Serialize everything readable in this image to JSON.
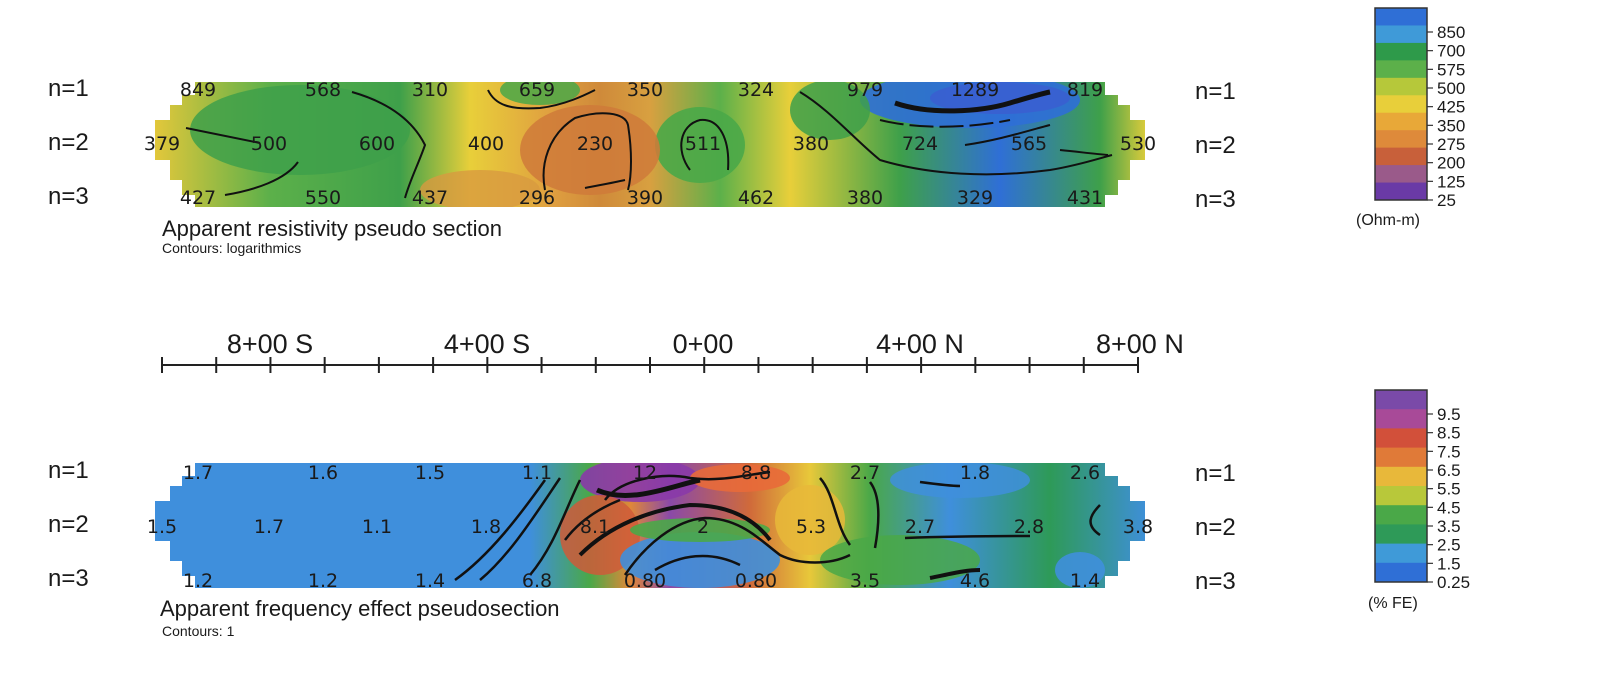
{
  "chart_data": [
    {
      "type": "heatmap",
      "title": "Apparent resistivity pseudo section",
      "subtitle": "Contours: logarithmics",
      "rows": [
        "n=1",
        "n=2",
        "n=3"
      ],
      "values": [
        [
          "849",
          "568",
          "310",
          "659",
          "350",
          "324",
          "979",
          "1289",
          "819"
        ],
        [
          "379",
          "500",
          "600",
          "400",
          "230",
          "511",
          "380",
          "724",
          "565",
          "530"
        ],
        [
          "427",
          "550",
          "437",
          "296",
          "390",
          "462",
          "380",
          "329",
          "431"
        ]
      ],
      "colorbar": {
        "ticks": [
          "850",
          "700",
          "575",
          "500",
          "425",
          "350",
          "275",
          "200",
          "125",
          "25"
        ],
        "unit": "(Ohm-m)",
        "colors": [
          "#2f6fd6",
          "#3f9ad8",
          "#2e9a4a",
          "#5cb04a",
          "#b6c83a",
          "#e8cf3a",
          "#e8a838",
          "#de8a3a",
          "#c8603a",
          "#9a5a8a",
          "#6a3aa6"
        ]
      }
    },
    {
      "type": "heatmap",
      "title": "Apparent frequency effect pseudosection",
      "subtitle": "Contours: 1",
      "rows": [
        "n=1",
        "n=2",
        "n=3"
      ],
      "values": [
        [
          "1.7",
          "1.6",
          "1.5",
          "1.1",
          "12",
          "8.8",
          "2.7",
          "1.8",
          "2.6"
        ],
        [
          "1.5",
          "1.7",
          "1.1",
          "1.8",
          "8.1",
          "2",
          "5.3",
          "2.7",
          "2.8",
          "3.8"
        ],
        [
          "1.2",
          "1.2",
          "1.4",
          "6.8",
          "0.80",
          "0.80",
          "3.5",
          "4.6",
          "1.4"
        ]
      ],
      "colorbar": {
        "ticks": [
          "9.5",
          "8.5",
          "7.5",
          "6.5",
          "5.5",
          "4.5",
          "3.5",
          "2.5",
          "1.5",
          "0.25"
        ],
        "unit": "(% FE)",
        "colors": [
          "#7a4aa8",
          "#a84a98",
          "#d2503a",
          "#e07a38",
          "#e8b83a",
          "#b8c83a",
          "#4aa848",
          "#2e9a58",
          "#3f9ad8",
          "#2f6fd6"
        ]
      }
    }
  ],
  "axis": {
    "ticks": [
      "8+00 S",
      "4+00 S",
      "0+00",
      "4+00 N",
      "8+00 N"
    ]
  }
}
